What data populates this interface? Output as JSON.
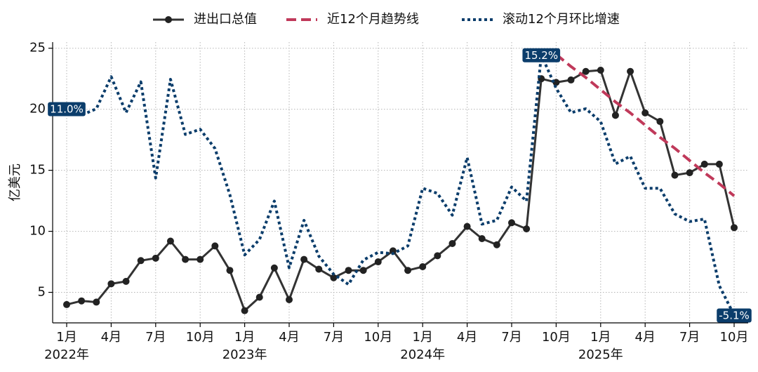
{
  "chart_data": {
    "type": "line",
    "ylabel": "亿美元",
    "x": [
      "2022-01",
      "2022-02",
      "2022-03",
      "2022-04",
      "2022-05",
      "2022-06",
      "2022-07",
      "2022-08",
      "2022-09",
      "2022-10",
      "2022-11",
      "2022-12",
      "2023-01",
      "2023-02",
      "2023-03",
      "2023-04",
      "2023-05",
      "2023-06",
      "2023-07",
      "2023-08",
      "2023-09",
      "2023-10",
      "2023-11",
      "2023-12",
      "2024-01",
      "2024-02",
      "2024-03",
      "2024-04",
      "2024-05",
      "2024-06",
      "2024-07",
      "2024-08",
      "2024-09",
      "2024-10",
      "2024-11",
      "2024-12",
      "2025-01",
      "2025-02",
      "2025-03",
      "2025-04",
      "2025-05",
      "2025-06",
      "2025-07",
      "2025-08",
      "2025-09",
      "2025-10"
    ],
    "series": [
      {
        "name": "进出口总值",
        "color": "#333333",
        "style": "solid-marker",
        "values": [
          4.0,
          4.3,
          4.2,
          5.7,
          5.9,
          7.6,
          7.8,
          9.2,
          7.7,
          7.7,
          8.8,
          6.8,
          3.5,
          4.6,
          7.0,
          4.4,
          7.7,
          6.9,
          6.2,
          6.8,
          6.8,
          7.5,
          8.4,
          6.8,
          7.1,
          8.0,
          9.0,
          10.4,
          9.4,
          8.9,
          10.7,
          10.2,
          22.5,
          22.2,
          22.4,
          23.1,
          23.2,
          19.5,
          23.1,
          19.7,
          19.0,
          14.6,
          14.8,
          15.5,
          15.5,
          10.3
        ]
      },
      {
        "name": "近12个月趋势线",
        "color": "#c0395a",
        "style": "dashed",
        "values": [
          null,
          null,
          null,
          null,
          null,
          null,
          null,
          null,
          null,
          null,
          null,
          null,
          null,
          null,
          null,
          null,
          null,
          null,
          null,
          null,
          null,
          null,
          null,
          null,
          null,
          null,
          null,
          null,
          null,
          null,
          null,
          null,
          null,
          24.5,
          23.5,
          22.6,
          21.6,
          20.6,
          19.7,
          18.7,
          17.7,
          16.8,
          15.8,
          14.8,
          13.9,
          12.9
        ]
      },
      {
        "name": "滚动12个月环比增速",
        "color": "#0b3d6b",
        "style": "dotted",
        "axis": "y2",
        "values": [
          11.0,
          10.5,
          11.0,
          13.5,
          10.7,
          13.1,
          5.6,
          13.3,
          9.0,
          9.4,
          7.9,
          4.3,
          -0.4,
          0.8,
          3.8,
          -1.4,
          2.3,
          -0.5,
          -1.9,
          -2.7,
          -0.8,
          -0.2,
          -0.3,
          0.3,
          4.8,
          4.4,
          2.7,
          7.2,
          2.0,
          2.3,
          4.9,
          3.8,
          15.2,
          12.6,
          10.7,
          11.0,
          10.0,
          6.7,
          7.3,
          4.8,
          4.8,
          2.8,
          2.2,
          2.4,
          -2.8,
          -5.1
        ],
        "value_labels": [
          "11.0%",
          null,
          null,
          null,
          null,
          null,
          null,
          null,
          null,
          null,
          null,
          null,
          null,
          null,
          null,
          null,
          null,
          null,
          null,
          null,
          null,
          null,
          null,
          null,
          null,
          null,
          null,
          null,
          null,
          null,
          null,
          null,
          "15.2%",
          null,
          null,
          null,
          null,
          null,
          null,
          null,
          null,
          null,
          null,
          null,
          null,
          "-5.1%"
        ]
      }
    ],
    "ylim": [
      2.5,
      25.5
    ],
    "yticks": [
      5,
      10,
      15,
      20,
      25
    ],
    "y2lim": [
      -5.7,
      16.2
    ],
    "xticks": [
      {
        "value": "2022-01",
        "label": "1月"
      },
      {
        "value": "2022-04",
        "label": "4月"
      },
      {
        "value": "2022-07",
        "label": "7月"
      },
      {
        "value": "2022-10",
        "label": "10月"
      },
      {
        "value": "2023-01",
        "label": "1月"
      },
      {
        "value": "2023-04",
        "label": "4月"
      },
      {
        "value": "2023-07",
        "label": "7月"
      },
      {
        "value": "2023-10",
        "label": "10月"
      },
      {
        "value": "2024-01",
        "label": "1月"
      },
      {
        "value": "2024-04",
        "label": "4月"
      },
      {
        "value": "2024-07",
        "label": "7月"
      },
      {
        "value": "2024-10",
        "label": "10月"
      },
      {
        "value": "2025-01",
        "label": "1月"
      },
      {
        "value": "2025-04",
        "label": "4月"
      },
      {
        "value": "2025-07",
        "label": "7月"
      },
      {
        "value": "2025-10",
        "label": "10月"
      }
    ],
    "year_labels": [
      {
        "value": "2022-01",
        "label": "2022年"
      },
      {
        "value": "2023-01",
        "label": "2023年"
      },
      {
        "value": "2024-01",
        "label": "2024年"
      },
      {
        "value": "2025-01",
        "label": "2025年"
      }
    ],
    "grid": true,
    "legend": "top"
  }
}
